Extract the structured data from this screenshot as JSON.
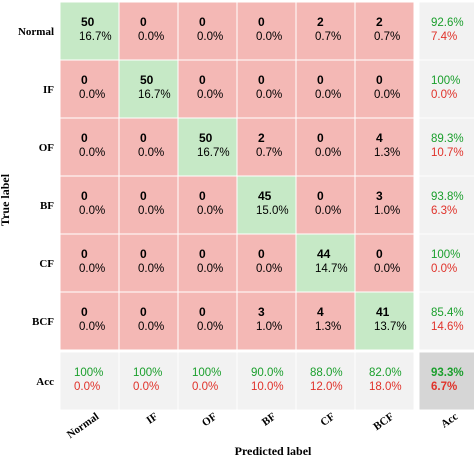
{
  "chart_data": {
    "type": "heatmap",
    "title": "",
    "xlabel": "Predicted label",
    "ylabel": "True label",
    "row_labels": [
      "Normal",
      "IF",
      "OF",
      "BF",
      "CF",
      "BCF",
      "Acc"
    ],
    "col_labels": [
      "Normal",
      "IF",
      "OF",
      "BF",
      "CF",
      "BCF",
      "Acc"
    ],
    "counts": [
      [
        50,
        0,
        0,
        0,
        2,
        2
      ],
      [
        0,
        50,
        0,
        0,
        0,
        0
      ],
      [
        0,
        0,
        50,
        2,
        0,
        4
      ],
      [
        0,
        0,
        0,
        45,
        0,
        3
      ],
      [
        0,
        0,
        0,
        0,
        44,
        0
      ],
      [
        0,
        0,
        0,
        3,
        4,
        41
      ]
    ],
    "percentages": [
      [
        "16.7%",
        "0.0%",
        "0.0%",
        "0.0%",
        "0.7%",
        "0.7%"
      ],
      [
        "0.0%",
        "16.7%",
        "0.0%",
        "0.0%",
        "0.0%",
        "0.0%"
      ],
      [
        "0.0%",
        "0.0%",
        "16.7%",
        "0.7%",
        "0.0%",
        "1.3%"
      ],
      [
        "0.0%",
        "0.0%",
        "0.0%",
        "15.0%",
        "0.0%",
        "1.0%"
      ],
      [
        "0.0%",
        "0.0%",
        "0.0%",
        "0.0%",
        "14.7%",
        "0.0%"
      ],
      [
        "0.0%",
        "0.0%",
        "0.0%",
        "1.0%",
        "1.3%",
        "13.7%"
      ]
    ],
    "row_accuracy": [
      [
        "92.6%",
        "7.4%"
      ],
      [
        "100%",
        "0.0%"
      ],
      [
        "89.3%",
        "10.7%"
      ],
      [
        "93.8%",
        "6.3%"
      ],
      [
        "100%",
        "0.0%"
      ],
      [
        "85.4%",
        "14.6%"
      ]
    ],
    "col_accuracy": [
      [
        "100%",
        "0.0%"
      ],
      [
        "100%",
        "0.0%"
      ],
      [
        "100%",
        "0.0%"
      ],
      [
        "90.0%",
        "10.0%"
      ],
      [
        "88.0%",
        "12.0%"
      ],
      [
        "82.0%",
        "18.0%"
      ]
    ],
    "overall_accuracy": [
      "93.3%",
      "6.7%"
    ]
  },
  "colors": {
    "diagonal": "#c6e9c6",
    "off_diagonal": "#f4b8b5",
    "summary": "#f2f2f2",
    "overall": "#d6d6d6",
    "correct_text": "#1a9f2c",
    "error_text": "#e0322a"
  }
}
